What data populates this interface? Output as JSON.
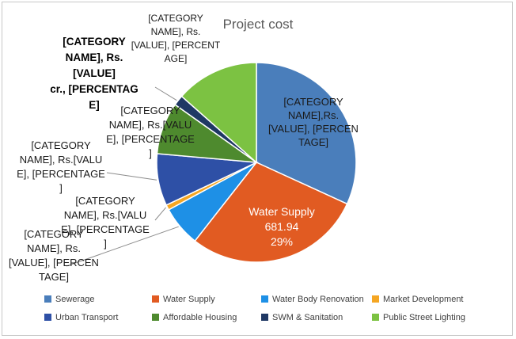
{
  "chart_data": {
    "type": "pie",
    "title": "Project cost",
    "unit_prefix": "Rs.",
    "categories": [
      "Sewerage",
      "Water Supply",
      "Water Body Renovation",
      "Market Development",
      "Urban Transport",
      "Affordable Housing",
      "SWM & Sanitation",
      "Public Street Lighting"
    ],
    "values": [
      755.0,
      681.94,
      155.0,
      20.0,
      200.0,
      200.0,
      40.0,
      320.0
    ],
    "percentages": [
      "32%",
      "29%",
      "7%",
      "1%",
      "8%",
      "8%",
      "2%",
      "14%"
    ],
    "colors": [
      "#4a7ebb",
      "#e15b22",
      "#1e90e6",
      "#f5a623",
      "#2e50a6",
      "#4e8a2e",
      "#1f3864",
      "#7cc242"
    ],
    "data_labels": [
      {
        "lines": [
          "[CATEGORY",
          "NAME],Rs.",
          "[VALUE], [PERCEN",
          "TAGE]"
        ],
        "color": "#1a1a1a",
        "bold": false
      },
      {
        "lines": [
          "Water Supply",
          "681.94",
          "29%"
        ],
        "color": "#ffffff",
        "bold": false
      },
      {
        "lines": [
          "[CATEGORY",
          "NAME], Rs.",
          "[VALUE], [PERCEN",
          "TAGE]"
        ],
        "color": "#1a1a1a",
        "bold": false
      },
      {
        "lines": [
          "[CATEGORY",
          "NAME], Rs.[VALU",
          "E], [PERCENTAGE",
          "]"
        ],
        "color": "#1a1a1a",
        "bold": false
      },
      {
        "lines": [
          "[CATEGORY",
          "NAME], Rs.[VALU",
          "E], [PERCENTAGE",
          "]"
        ],
        "color": "#1a1a1a",
        "bold": false
      },
      {
        "lines": [
          "[CATEGORY",
          "NAME], Rs.[VALU",
          "E], [PERCENTAGE",
          "]"
        ],
        "color": "#1a1a1a",
        "bold": false
      },
      {
        "lines": [
          "[CATEGORY",
          "NAME], Rs.",
          "[VALUE]",
          "cr., [PERCENTAG",
          "E]"
        ],
        "color": "#000000",
        "bold": true
      },
      {
        "lines": [
          "[CATEGORY",
          "NAME], Rs.",
          "[VALUE], [PERCENT",
          "AGE]"
        ],
        "color": "#1a1a1a",
        "bold": false
      }
    ],
    "legend_position": "bottom"
  }
}
